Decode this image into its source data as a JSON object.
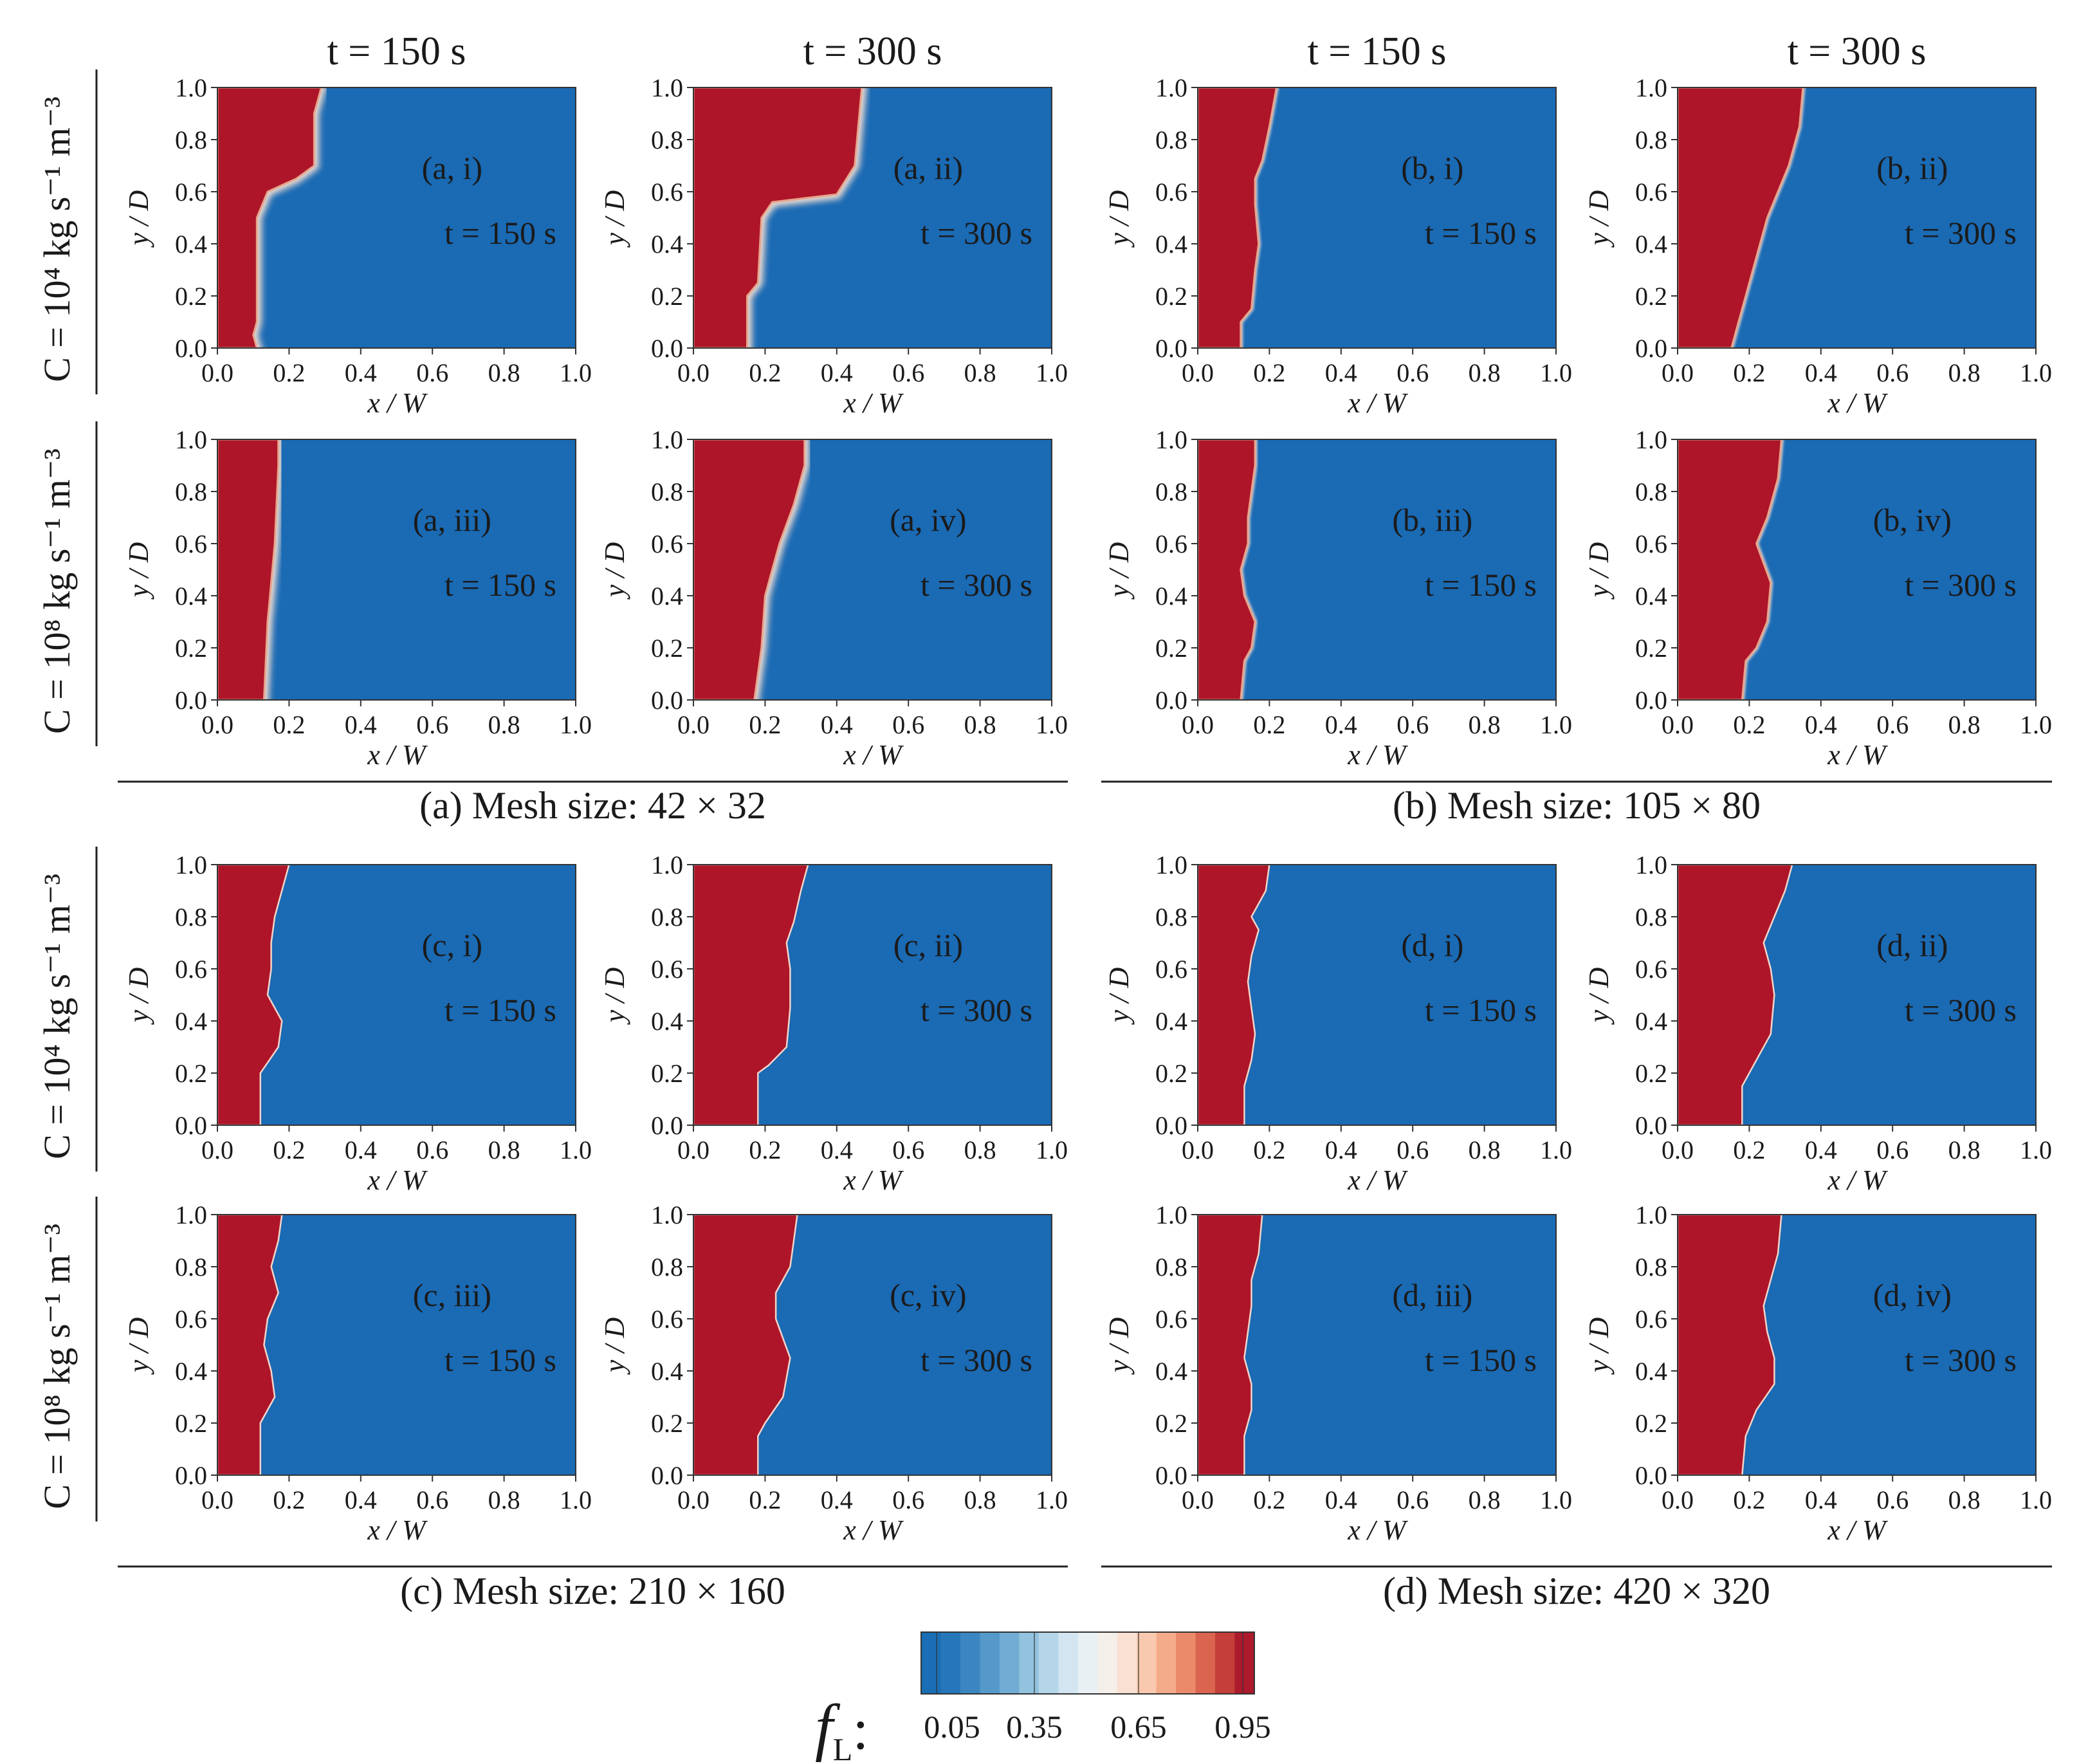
{
  "column_headers": [
    "t = 150 s",
    "t = 300 s",
    "t = 150 s",
    "t = 300 s"
  ],
  "row_labels": [
    "C = 10⁴ kg s⁻¹ m⁻³",
    "C = 10⁸ kg s⁻¹ m⁻³",
    "C = 10⁴ kg s⁻¹ m⁻³",
    "C = 10⁸ kg s⁻¹ m⁻³"
  ],
  "group_captions": [
    "(a) Mesh size: 42 × 32",
    "(b) Mesh size: 105 × 80",
    "(c) Mesh size: 210 × 160",
    "(d) Mesh size: 420 × 320"
  ],
  "colorbar": {
    "label": "fL:",
    "ticks": [
      "0.05",
      "0.35",
      "0.65",
      "0.95"
    ],
    "colors": [
      "#1a6eb5",
      "#2677b9",
      "#3b86c0",
      "#5499c9",
      "#70acd3",
      "#92c2de",
      "#b4d6e8",
      "#d2e5f0",
      "#e8f0f4",
      "#f5efe9",
      "#f9e0d2",
      "#f8c9ae",
      "#f4ab8a",
      "#eb8a6b",
      "#da644f",
      "#c43e3a",
      "#ac1a2c"
    ]
  },
  "chart_data": {
    "type": "heatmap",
    "xlabel": "x / W",
    "ylabel": "y / D",
    "xlim": [
      0,
      1
    ],
    "ylim": [
      0,
      1
    ],
    "xticks": [
      "0.0",
      "0.2",
      "0.4",
      "0.6",
      "0.8",
      "1.0"
    ],
    "yticks": [
      "0.0",
      "0.2",
      "0.4",
      "0.6",
      "0.8",
      "1.0"
    ],
    "liquid_color": "#ae1529",
    "solid_color": "#1a6ab4",
    "series_note": "Each panel: melt front x-position at each y (liquid fraction fL = 1 to the left, 0 to the right)",
    "panels": [
      {
        "label": "(a, i)",
        "time": "t = 150 s",
        "blur": 5,
        "front": [
          [
            0,
            0.11
          ],
          [
            0.05,
            0.1
          ],
          [
            0.1,
            0.11
          ],
          [
            0.5,
            0.11
          ],
          [
            0.6,
            0.14
          ],
          [
            0.65,
            0.22
          ],
          [
            0.7,
            0.27
          ],
          [
            0.9,
            0.27
          ],
          [
            1.0,
            0.29
          ]
        ]
      },
      {
        "label": "(a, ii)",
        "time": "t = 300 s",
        "blur": 5,
        "front": [
          [
            0,
            0.15
          ],
          [
            0.2,
            0.15
          ],
          [
            0.25,
            0.18
          ],
          [
            0.5,
            0.19
          ],
          [
            0.56,
            0.22
          ],
          [
            0.59,
            0.4
          ],
          [
            0.7,
            0.45
          ],
          [
            0.85,
            0.46
          ],
          [
            1.0,
            0.47
          ]
        ]
      },
      {
        "label": "(a, iii)",
        "time": "t = 150 s",
        "blur": 5,
        "front": [
          [
            0,
            0.13
          ],
          [
            0.3,
            0.14
          ],
          [
            0.6,
            0.16
          ],
          [
            0.9,
            0.17
          ],
          [
            1.0,
            0.17
          ]
        ]
      },
      {
        "label": "(a, iv)",
        "time": "t = 300 s",
        "blur": 5,
        "front": [
          [
            0,
            0.17
          ],
          [
            0.2,
            0.19
          ],
          [
            0.4,
            0.2
          ],
          [
            0.5,
            0.22
          ],
          [
            0.6,
            0.24
          ],
          [
            0.75,
            0.28
          ],
          [
            0.9,
            0.31
          ],
          [
            1.0,
            0.31
          ]
        ]
      },
      {
        "label": "(b, i)",
        "time": "t = 150 s",
        "blur": 2,
        "front": [
          [
            0,
            0.12
          ],
          [
            0.1,
            0.12
          ],
          [
            0.15,
            0.15
          ],
          [
            0.3,
            0.16
          ],
          [
            0.4,
            0.17
          ],
          [
            0.55,
            0.16
          ],
          [
            0.65,
            0.16
          ],
          [
            0.72,
            0.18
          ],
          [
            0.85,
            0.2
          ],
          [
            1.0,
            0.22
          ]
        ]
      },
      {
        "label": "(b, ii)",
        "time": "t = 300 s",
        "blur": 2,
        "front": [
          [
            0,
            0.15
          ],
          [
            0.1,
            0.17
          ],
          [
            0.3,
            0.21
          ],
          [
            0.5,
            0.25
          ],
          [
            0.7,
            0.31
          ],
          [
            0.85,
            0.34
          ],
          [
            1.0,
            0.35
          ]
        ]
      },
      {
        "label": "(b, iii)",
        "time": "t = 150 s",
        "blur": 2,
        "front": [
          [
            0,
            0.12
          ],
          [
            0.15,
            0.13
          ],
          [
            0.2,
            0.15
          ],
          [
            0.3,
            0.16
          ],
          [
            0.4,
            0.13
          ],
          [
            0.5,
            0.12
          ],
          [
            0.6,
            0.14
          ],
          [
            0.7,
            0.14
          ],
          [
            0.8,
            0.15
          ],
          [
            0.9,
            0.16
          ],
          [
            1.0,
            0.16
          ]
        ]
      },
      {
        "label": "(b, iv)",
        "time": "t = 300 s",
        "blur": 2,
        "front": [
          [
            0,
            0.18
          ],
          [
            0.15,
            0.19
          ],
          [
            0.2,
            0.22
          ],
          [
            0.3,
            0.25
          ],
          [
            0.45,
            0.26
          ],
          [
            0.6,
            0.22
          ],
          [
            0.7,
            0.25
          ],
          [
            0.85,
            0.28
          ],
          [
            1.0,
            0.29
          ]
        ]
      },
      {
        "label": "(c, i)",
        "time": "t = 150 s",
        "blur": 0,
        "front": [
          [
            0,
            0.12
          ],
          [
            0.15,
            0.12
          ],
          [
            0.2,
            0.12
          ],
          [
            0.24,
            0.14
          ],
          [
            0.3,
            0.17
          ],
          [
            0.4,
            0.18
          ],
          [
            0.5,
            0.14
          ],
          [
            0.6,
            0.15
          ],
          [
            0.7,
            0.15
          ],
          [
            0.8,
            0.16
          ],
          [
            1.0,
            0.2
          ]
        ]
      },
      {
        "label": "(c, ii)",
        "time": "t = 300 s",
        "blur": 0,
        "front": [
          [
            0,
            0.18
          ],
          [
            0.2,
            0.18
          ],
          [
            0.23,
            0.21
          ],
          [
            0.3,
            0.26
          ],
          [
            0.45,
            0.27
          ],
          [
            0.6,
            0.27
          ],
          [
            0.7,
            0.26
          ],
          [
            0.78,
            0.28
          ],
          [
            0.9,
            0.3
          ],
          [
            1.0,
            0.32
          ]
        ]
      },
      {
        "label": "(c, iii)",
        "time": "t = 150 s",
        "blur": 0,
        "front": [
          [
            0,
            0.12
          ],
          [
            0.2,
            0.12
          ],
          [
            0.3,
            0.16
          ],
          [
            0.4,
            0.15
          ],
          [
            0.5,
            0.13
          ],
          [
            0.6,
            0.14
          ],
          [
            0.7,
            0.17
          ],
          [
            0.8,
            0.15
          ],
          [
            0.9,
            0.17
          ],
          [
            1.0,
            0.18
          ]
        ]
      },
      {
        "label": "(c, iv)",
        "time": "t = 300 s",
        "blur": 0,
        "front": [
          [
            0,
            0.18
          ],
          [
            0.15,
            0.18
          ],
          [
            0.2,
            0.2
          ],
          [
            0.3,
            0.25
          ],
          [
            0.45,
            0.27
          ],
          [
            0.6,
            0.23
          ],
          [
            0.7,
            0.23
          ],
          [
            0.8,
            0.27
          ],
          [
            0.9,
            0.28
          ],
          [
            1.0,
            0.29
          ]
        ]
      },
      {
        "label": "(d, i)",
        "time": "t = 150 s",
        "blur": 0,
        "front": [
          [
            0,
            0.13
          ],
          [
            0.15,
            0.13
          ],
          [
            0.25,
            0.15
          ],
          [
            0.35,
            0.16
          ],
          [
            0.45,
            0.15
          ],
          [
            0.55,
            0.14
          ],
          [
            0.65,
            0.15
          ],
          [
            0.75,
            0.17
          ],
          [
            0.8,
            0.15
          ],
          [
            0.9,
            0.19
          ],
          [
            1.0,
            0.2
          ]
        ]
      },
      {
        "label": "(d, ii)",
        "time": "t = 300 s",
        "blur": 0,
        "front": [
          [
            0,
            0.18
          ],
          [
            0.15,
            0.18
          ],
          [
            0.25,
            0.22
          ],
          [
            0.35,
            0.26
          ],
          [
            0.5,
            0.27
          ],
          [
            0.6,
            0.26
          ],
          [
            0.7,
            0.24
          ],
          [
            0.8,
            0.27
          ],
          [
            0.9,
            0.3
          ],
          [
            1.0,
            0.32
          ]
        ]
      },
      {
        "label": "(d, iii)",
        "time": "t = 150 s",
        "blur": 0,
        "front": [
          [
            0,
            0.13
          ],
          [
            0.15,
            0.13
          ],
          [
            0.25,
            0.15
          ],
          [
            0.35,
            0.15
          ],
          [
            0.45,
            0.13
          ],
          [
            0.55,
            0.14
          ],
          [
            0.65,
            0.15
          ],
          [
            0.75,
            0.15
          ],
          [
            0.85,
            0.17
          ],
          [
            1.0,
            0.18
          ]
        ]
      },
      {
        "label": "(d, iv)",
        "time": "t = 300 s",
        "blur": 0,
        "front": [
          [
            0,
            0.18
          ],
          [
            0.15,
            0.19
          ],
          [
            0.25,
            0.22
          ],
          [
            0.35,
            0.27
          ],
          [
            0.45,
            0.27
          ],
          [
            0.55,
            0.25
          ],
          [
            0.65,
            0.24
          ],
          [
            0.75,
            0.26
          ],
          [
            0.85,
            0.28
          ],
          [
            1.0,
            0.29
          ]
        ]
      }
    ]
  }
}
